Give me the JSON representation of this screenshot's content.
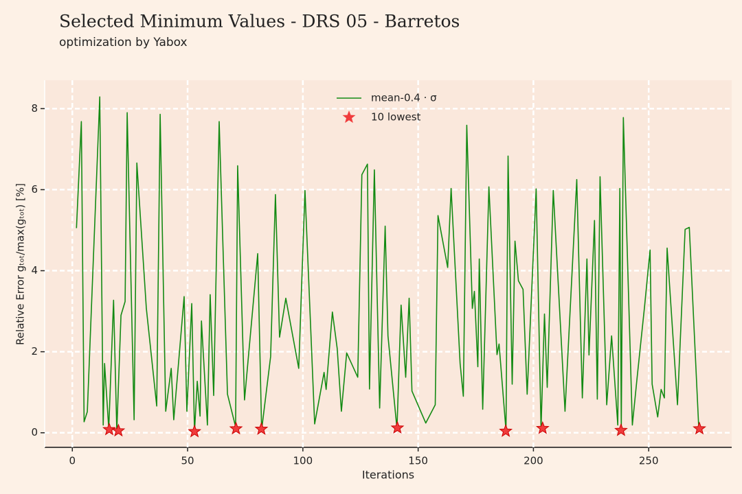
{
  "chart_data": {
    "type": "line",
    "title": "Selected Minimum Values - DRS 05 - Barretos",
    "subtitle": "optimization by Yabox",
    "x_label": "Iterations",
    "y_label": "Relative Error gₜₒₜ/max(gₜₒₜ) [%]",
    "xlim": [
      -12,
      286
    ],
    "ylim": [
      -0.36,
      8.7
    ],
    "xticks": [
      0,
      50,
      100,
      150,
      200,
      250
    ],
    "yticks": [
      0,
      2,
      4,
      6,
      8
    ],
    "grid": true,
    "legend": "top-center",
    "series": [
      {
        "name": "mean-0.4 · σ",
        "color": "#138a13",
        "marker": "line",
        "x": [
          1.8,
          3.9,
          5.1,
          6.5,
          11.9,
          13.4,
          14,
          15.8,
          17.9,
          19.3,
          21.1,
          22.9,
          23.8,
          26.8,
          28,
          32.1,
          36.6,
          38.1,
          40.5,
          42.9,
          44,
          48.5,
          49.7,
          51.8,
          53,
          54.2,
          55.4,
          56,
          58.6,
          59.8,
          61.3,
          63.7,
          67.3,
          70.8,
          71.7,
          74.7,
          80.4,
          82.1,
          86,
          88.1,
          89.9,
          92.6,
          98.2,
          100.9,
          105.1,
          109.2,
          110.1,
          112.8,
          114.9,
          116.7,
          119,
          123.8,
          125.6,
          128,
          128.9,
          131,
          133.3,
          135.7,
          136.9,
          140.8,
          142.6,
          144.6,
          146.1,
          147.3,
          153.3,
          157.4,
          158.6,
          162.8,
          164.3,
          168.2,
          169.6,
          171.1,
          173.5,
          174.4,
          175.9,
          176.5,
          178,
          180.7,
          184.2,
          185.1,
          188.1,
          189,
          190.8,
          192,
          193.5,
          195.5,
          197.3,
          201.2,
          203.3,
          204.8,
          206,
          208.6,
          213.7,
          218.8,
          221.2,
          223.2,
          224.1,
          226.5,
          227.7,
          228.9,
          231.8,
          233.9,
          236.6,
          237.5,
          238.1,
          239,
          242.9,
          245,
          248.2,
          250.6,
          251.5,
          253.9,
          255.4,
          256.8,
          258,
          262.5,
          265.8,
          267.6,
          271.7
        ],
        "values": [
          5.05,
          7.68,
          0.27,
          0.52,
          8.29,
          0.19,
          1.71,
          0.1,
          3.27,
          0.05,
          2.9,
          3.24,
          7.9,
          0.32,
          6.66,
          3.07,
          0.66,
          7.86,
          0.53,
          1.59,
          0.32,
          3.36,
          0.53,
          3.19,
          0.02,
          1.27,
          0.41,
          2.76,
          0.19,
          3.41,
          0.92,
          7.68,
          0.95,
          0.15,
          6.59,
          0.81,
          4.42,
          0.07,
          1.88,
          5.88,
          2.36,
          3.32,
          1.59,
          5.98,
          0.22,
          1.49,
          1.07,
          2.98,
          2.08,
          0.53,
          1.97,
          1.37,
          6.37,
          6.63,
          1.08,
          6.49,
          0.61,
          5.1,
          2.39,
          0.1,
          3.15,
          1.37,
          3.32,
          1.03,
          0.24,
          0.69,
          5.36,
          4.08,
          6.03,
          1.71,
          0.9,
          7.59,
          3.07,
          3.49,
          1.63,
          4.29,
          0.58,
          6.07,
          1.93,
          2.19,
          0.05,
          6.83,
          1.2,
          4.73,
          3.75,
          3.54,
          0.95,
          6.02,
          0.1,
          2.93,
          1.12,
          5.98,
          0.53,
          6.25,
          0.86,
          4.29,
          1.92,
          5.24,
          0.83,
          6.32,
          0.69,
          2.39,
          0.19,
          6.03,
          0.1,
          7.78,
          0.19,
          1.37,
          3.12,
          4.51,
          1.2,
          0.39,
          1.07,
          0.86,
          4.56,
          0.69,
          5.02,
          5.07,
          0.14
        ]
      },
      {
        "name": "10 lowest",
        "color": "#f03c3c",
        "marker": "star",
        "x": [
          16,
          20,
          53,
          71,
          82,
          141,
          188,
          204,
          238,
          272
        ],
        "values": [
          0.08,
          0.05,
          0.03,
          0.1,
          0.09,
          0.12,
          0.04,
          0.11,
          0.06,
          0.1
        ]
      }
    ]
  }
}
